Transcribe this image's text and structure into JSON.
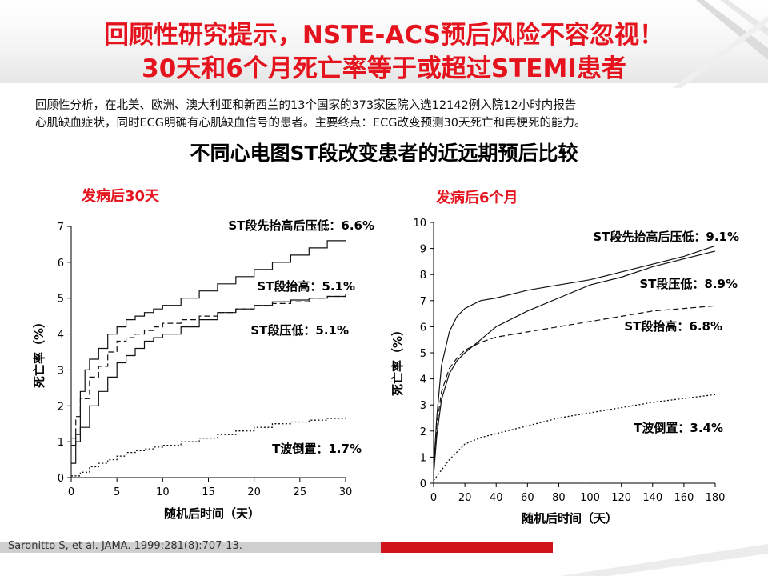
{
  "header": {
    "title_line1": "回顾性研究提示，NSTE-ACS预后风险不容忽视！",
    "title_line2": "30天和6个月死亡率等于或超过STEMI患者",
    "color": "#e5131d"
  },
  "description": {
    "line1": "回顾性分析，在北美、欧洲、澳大利亚和新西兰的13个国家的373家医院入选12142例入院12小时内报告",
    "line2": "心肌缺血症状，同时ECG明确有心肌缺血信号的患者。主要终点：ECG改变预测30天死亡和再梗死的能力。"
  },
  "subtitle": "不同心电图ST段改变患者的近远期预后比较",
  "footer": {
    "citation": "Saronitto S, et al. JAMA. 1999;281(8):707-13."
  },
  "chart_data": [
    {
      "type": "line",
      "title": "发病后30天",
      "xlabel": "随机后时间（天）",
      "ylabel": "死亡率（%）",
      "xlim": [
        0,
        30
      ],
      "ylim": [
        0,
        7
      ],
      "xticks": [
        0,
        5,
        10,
        15,
        20,
        25,
        30
      ],
      "yticks": [
        0,
        1,
        2,
        3,
        4,
        5,
        6,
        7
      ],
      "step": true,
      "series": [
        {
          "name": "ST段先抬高后压低：6.6%",
          "style": "solid",
          "x": [
            0,
            0.5,
            1,
            1.5,
            2,
            3,
            4,
            5,
            6,
            7,
            8,
            9,
            10,
            12,
            14,
            16,
            18,
            20,
            22,
            24,
            26,
            28,
            30
          ],
          "y": [
            0.4,
            1.2,
            2.4,
            3.0,
            3.3,
            3.6,
            4.0,
            4.2,
            4.4,
            4.5,
            4.6,
            4.7,
            4.8,
            5.0,
            5.2,
            5.4,
            5.6,
            5.8,
            6.0,
            6.2,
            6.4,
            6.6,
            6.6
          ]
        },
        {
          "name": "ST段抬高：5.1%",
          "style": "dashed",
          "x": [
            0,
            0.5,
            1,
            2,
            3,
            4,
            5,
            6,
            7,
            8,
            9,
            10,
            12,
            14,
            16,
            18,
            20,
            22,
            24,
            26,
            28,
            30
          ],
          "y": [
            1.1,
            1.7,
            2.2,
            2.8,
            3.1,
            3.5,
            3.8,
            3.9,
            4.0,
            4.1,
            4.2,
            4.3,
            4.4,
            4.5,
            4.6,
            4.7,
            4.8,
            4.85,
            4.9,
            5.0,
            5.05,
            5.1
          ]
        },
        {
          "name": "ST段压低：5.1%",
          "style": "solid",
          "x": [
            0,
            0.5,
            1,
            2,
            3,
            4,
            5,
            6,
            7,
            8,
            9,
            10,
            12,
            14,
            16,
            18,
            20,
            22,
            24,
            26,
            28,
            30
          ],
          "y": [
            0.9,
            1.0,
            1.4,
            2.0,
            2.4,
            2.8,
            3.2,
            3.4,
            3.6,
            3.8,
            3.9,
            4.0,
            4.2,
            4.4,
            4.6,
            4.7,
            4.8,
            4.9,
            4.95,
            5.0,
            5.05,
            5.1
          ]
        },
        {
          "name": "T波倒置：1.7%",
          "style": "dotted",
          "x": [
            0,
            1,
            2,
            3,
            4,
            5,
            6,
            7,
            8,
            9,
            10,
            12,
            14,
            16,
            18,
            20,
            22,
            24,
            26,
            28,
            30
          ],
          "y": [
            0.05,
            0.15,
            0.3,
            0.4,
            0.5,
            0.6,
            0.7,
            0.75,
            0.8,
            0.85,
            0.9,
            1.0,
            1.1,
            1.2,
            1.3,
            1.4,
            1.5,
            1.55,
            1.6,
            1.65,
            1.7
          ]
        }
      ]
    },
    {
      "type": "line",
      "title": "发病后6个月",
      "xlabel": "随机后时间（天）",
      "ylabel": "死亡率（%）",
      "xlim": [
        0,
        180
      ],
      "ylim": [
        0,
        10
      ],
      "xticks": [
        0,
        20,
        40,
        60,
        80,
        100,
        120,
        140,
        160,
        180
      ],
      "yticks": [
        0,
        1,
        2,
        3,
        4,
        5,
        6,
        7,
        8,
        9,
        10
      ],
      "step": false,
      "series": [
        {
          "name": "ST段先抬高后压低：9.1%",
          "style": "solid",
          "x": [
            0,
            2,
            5,
            10,
            15,
            20,
            30,
            40,
            60,
            80,
            100,
            120,
            140,
            160,
            180
          ],
          "y": [
            0.5,
            2.5,
            4.5,
            5.8,
            6.4,
            6.7,
            7.0,
            7.1,
            7.4,
            7.6,
            7.8,
            8.1,
            8.4,
            8.7,
            9.1
          ]
        },
        {
          "name": "ST段压低：8.9%",
          "style": "solid",
          "x": [
            0,
            2,
            5,
            10,
            15,
            20,
            30,
            40,
            60,
            80,
            100,
            120,
            140,
            160,
            180
          ],
          "y": [
            0.3,
            1.8,
            3.2,
            4.2,
            4.7,
            5.0,
            5.5,
            6.0,
            6.6,
            7.1,
            7.6,
            7.9,
            8.3,
            8.6,
            8.9
          ]
        },
        {
          "name": "ST段抬高：6.8%",
          "style": "dashed",
          "x": [
            0,
            2,
            5,
            10,
            15,
            20,
            30,
            40,
            60,
            80,
            100,
            120,
            140,
            160,
            180
          ],
          "y": [
            0.4,
            2.2,
            3.5,
            4.4,
            4.8,
            5.1,
            5.4,
            5.6,
            5.8,
            6.0,
            6.2,
            6.4,
            6.6,
            6.7,
            6.8
          ]
        },
        {
          "name": "T波倒置：3.4%",
          "style": "dotted",
          "x": [
            0,
            5,
            10,
            15,
            20,
            30,
            40,
            60,
            80,
            100,
            120,
            140,
            160,
            180
          ],
          "y": [
            0.1,
            0.5,
            0.9,
            1.2,
            1.5,
            1.75,
            1.9,
            2.2,
            2.5,
            2.7,
            2.9,
            3.1,
            3.25,
            3.4
          ]
        }
      ]
    }
  ]
}
